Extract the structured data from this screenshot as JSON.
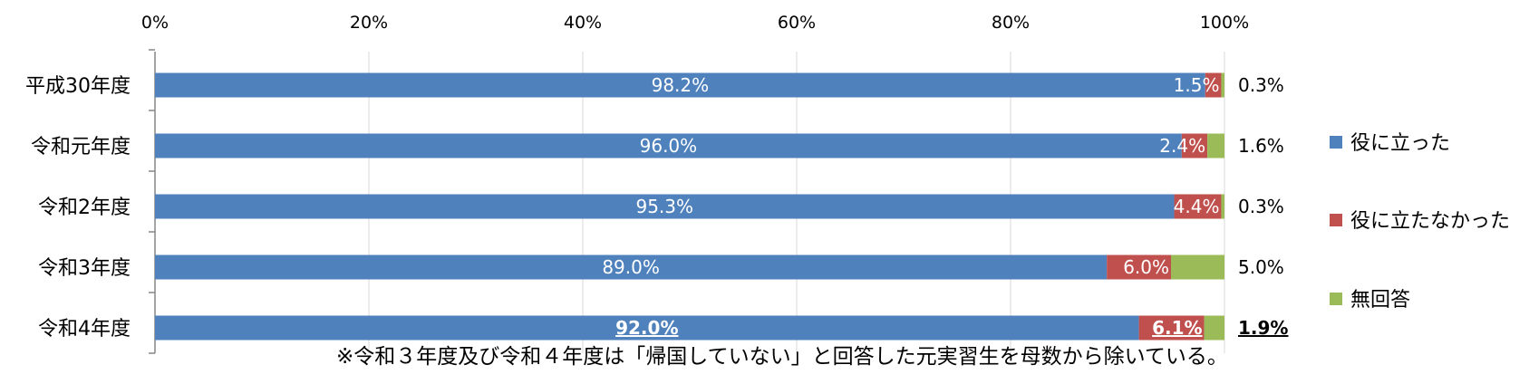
{
  "chart_data": {
    "type": "bar",
    "orientation": "horizontal",
    "stacked": "percent",
    "title": "",
    "xlabel": "",
    "ylabel": "",
    "xlim": [
      0,
      100
    ],
    "x_ticks": [
      "0%",
      "20%",
      "40%",
      "60%",
      "80%",
      "100%"
    ],
    "categories": [
      "平成30年度",
      "令和元年度",
      "令和2年度",
      "令和3年度",
      "令和4年度"
    ],
    "series": [
      {
        "name": "役に立った",
        "color": "#4f81bd",
        "values": [
          98.2,
          96.0,
          95.3,
          89.0,
          92.0
        ],
        "labels": [
          "98.2%",
          "96.0%",
          "95.3%",
          "89.0%",
          "92.0%"
        ]
      },
      {
        "name": "役に立たなかった",
        "color": "#c0504d",
        "values": [
          1.5,
          2.4,
          4.4,
          6.0,
          6.1
        ],
        "labels": [
          "1.5%",
          "2.4%",
          "4.4%",
          "6.0%",
          "6.1%"
        ]
      },
      {
        "name": "無回答",
        "color": "#9bbb59",
        "values": [
          0.3,
          1.6,
          0.3,
          5.0,
          1.9
        ],
        "labels": [
          "0.3%",
          "1.6%",
          "0.3%",
          "5.0%",
          "1.9%"
        ]
      }
    ],
    "highlighted_category": "令和4年度",
    "grid": true,
    "legend_position": "right",
    "note": "※令和３年度及び令和４年度は「帰国していない」と回答した元実習生を母数から除いている。"
  }
}
